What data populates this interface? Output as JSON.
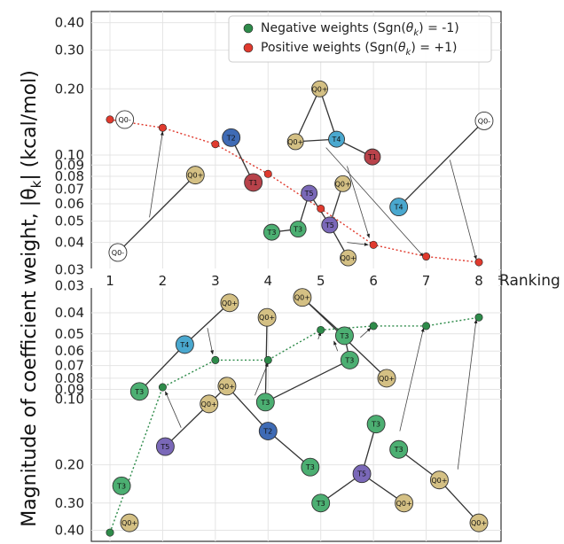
{
  "chart_data": {
    "type": "scatter",
    "ylabel": "Magnitude of coefficient weight, |θ_k| (kcal/mol)",
    "ylabel_main": "Magnitude of coefficient weight, |θ",
    "ylabel_sub": "k",
    "ylabel_end": "| (kcal/mol)",
    "xlabel": "Ranking",
    "x_ticks": [
      1,
      2,
      3,
      4,
      5,
      6,
      7,
      8
    ],
    "y_scale": "log",
    "top_panel": {
      "ylim": [
        0.028,
        0.45
      ],
      "y_ticks": [
        0.03,
        0.04,
        0.05,
        0.06,
        0.07,
        0.08,
        0.09,
        0.1,
        0.2,
        0.3,
        0.4
      ],
      "y_tick_labels": [
        "0.03",
        "0.04",
        "0.05",
        "0.06",
        "0.07",
        "0.08",
        "0.09",
        "0.10",
        "0.20",
        "0.30",
        "0.40"
      ]
    },
    "bottom_panel": {
      "ylim": [
        0.028,
        0.45
      ],
      "inverted": true,
      "y_ticks": [
        0.03,
        0.04,
        0.05,
        0.06,
        0.07,
        0.08,
        0.09,
        0.1,
        0.2,
        0.3,
        0.4
      ],
      "y_tick_labels": [
        "0.03",
        "0.04",
        "0.05",
        "0.06",
        "0.07",
        "0.08",
        "0.09",
        "0.10",
        "0.20",
        "0.30",
        "0.40"
      ]
    },
    "legend": {
      "placement": "top-right",
      "entries": [
        {
          "prefix": "Negative weights (Sgn(",
          "theta": "θ",
          "sub": "k",
          "suffix": ") = -1)",
          "color": "#2e8b4a"
        },
        {
          "prefix": "Positive weights (Sgn(",
          "theta": "θ",
          "sub": "k",
          "suffix": ") = +1)",
          "color": "#e03a2e"
        }
      ]
    },
    "series": [
      {
        "name": "Positive weights",
        "color": "#e03a2e",
        "panel": "top",
        "x": [
          1,
          2,
          3,
          4,
          5,
          6,
          7,
          8
        ],
        "y": [
          0.145,
          0.133,
          0.112,
          0.082,
          0.057,
          0.039,
          0.0345,
          0.0325
        ]
      },
      {
        "name": "Negative weights",
        "color": "#2e8b4a",
        "panel": "bottom",
        "x": [
          1,
          2,
          3,
          4,
          5,
          6,
          7,
          8
        ],
        "y": [
          0.41,
          0.088,
          0.066,
          0.066,
          0.048,
          0.046,
          0.046,
          0.042
        ]
      }
    ],
    "node_colors": {
      "Q0": "#d4c084",
      "Q0e": "#ffffff",
      "T1": "#b8424a",
      "T2": "#3f6bb5",
      "T3": "#4caf72",
      "T4": "#4aa8cf",
      "T5": "#7a68b8"
    },
    "top_nodes": [
      {
        "label": "Q0-",
        "x": 1.28,
        "y": 0.145,
        "kind": "Q0e",
        "r": 10
      },
      {
        "label": "Q0-",
        "x": 1.15,
        "y": 0.036,
        "kind": "Q0e",
        "r": 10
      },
      {
        "label": "Q0+",
        "x": 2.62,
        "y": 0.081,
        "kind": "Q0",
        "r": 10
      },
      {
        "label": "T2",
        "x": 3.3,
        "y": 0.12,
        "kind": "T2",
        "r": 10
      },
      {
        "label": "T1",
        "x": 3.72,
        "y": 0.075,
        "kind": "T1",
        "r": 10
      },
      {
        "label": "T3",
        "x": 4.07,
        "y": 0.0445,
        "kind": "T3",
        "r": 9
      },
      {
        "label": "T3",
        "x": 4.57,
        "y": 0.046,
        "kind": "T3",
        "r": 9
      },
      {
        "label": "T5",
        "x": 4.78,
        "y": 0.067,
        "kind": "T5",
        "r": 9
      },
      {
        "label": "Q0+",
        "x": 4.98,
        "y": 0.2,
        "kind": "Q0",
        "r": 9
      },
      {
        "label": "Q0+",
        "x": 4.52,
        "y": 0.115,
        "kind": "Q0",
        "r": 9
      },
      {
        "label": "T4",
        "x": 5.3,
        "y": 0.118,
        "kind": "T4",
        "r": 9
      },
      {
        "label": "T1",
        "x": 5.98,
        "y": 0.098,
        "kind": "T1",
        "r": 9
      },
      {
        "label": "Q0+",
        "x": 5.42,
        "y": 0.074,
        "kind": "Q0",
        "r": 9
      },
      {
        "label": "T5",
        "x": 5.17,
        "y": 0.048,
        "kind": "T5",
        "r": 9
      },
      {
        "label": "Q0+",
        "x": 5.52,
        "y": 0.034,
        "kind": "Q0",
        "r": 9
      },
      {
        "label": "T4",
        "x": 6.48,
        "y": 0.058,
        "kind": "T4",
        "r": 10
      },
      {
        "label": "Q0-",
        "x": 8.1,
        "y": 0.143,
        "kind": "Q0e",
        "r": 10
      }
    ],
    "bottom_nodes": [
      {
        "label": "T4",
        "x": 2.42,
        "y": 0.056,
        "kind": "T4",
        "r": 10
      },
      {
        "label": "Q0+",
        "x": 3.27,
        "y": 0.036,
        "kind": "Q0",
        "r": 10
      },
      {
        "label": "T3",
        "x": 1.56,
        "y": 0.092,
        "kind": "T3",
        "r": 10
      },
      {
        "label": "T5",
        "x": 2.05,
        "y": 0.165,
        "kind": "T5",
        "r": 10
      },
      {
        "label": "Q0+",
        "x": 2.88,
        "y": 0.105,
        "kind": "Q0",
        "r": 10
      },
      {
        "label": "Q0+",
        "x": 3.22,
        "y": 0.087,
        "kind": "Q0",
        "r": 10
      },
      {
        "label": "Q0+",
        "x": 3.98,
        "y": 0.042,
        "kind": "Q0",
        "r": 10
      },
      {
        "label": "T3",
        "x": 3.95,
        "y": 0.103,
        "kind": "T3",
        "r": 10
      },
      {
        "label": "T2",
        "x": 4.0,
        "y": 0.14,
        "kind": "T2",
        "r": 10
      },
      {
        "label": "T3",
        "x": 4.8,
        "y": 0.205,
        "kind": "T3",
        "r": 10
      },
      {
        "label": "Q0+",
        "x": 4.65,
        "y": 0.034,
        "kind": "Q0",
        "r": 10
      },
      {
        "label": "T3",
        "x": 5.45,
        "y": 0.051,
        "kind": "T3",
        "r": 10
      },
      {
        "label": "T3",
        "x": 5.55,
        "y": 0.066,
        "kind": "T3",
        "r": 10
      },
      {
        "label": "Q0+",
        "x": 6.25,
        "y": 0.08,
        "kind": "Q0",
        "r": 10
      },
      {
        "label": "T3",
        "x": 6.05,
        "y": 0.13,
        "kind": "T3",
        "r": 10
      },
      {
        "label": "T3",
        "x": 5.0,
        "y": 0.3,
        "kind": "T3",
        "r": 10
      },
      {
        "label": "T5",
        "x": 5.78,
        "y": 0.22,
        "kind": "T5",
        "r": 10
      },
      {
        "label": "Q0+",
        "x": 6.58,
        "y": 0.3,
        "kind": "Q0",
        "r": 10
      },
      {
        "label": "T3",
        "x": 6.48,
        "y": 0.17,
        "kind": "T3",
        "r": 10
      },
      {
        "label": "Q0+",
        "x": 7.25,
        "y": 0.235,
        "kind": "Q0",
        "r": 10
      },
      {
        "label": "Q0+",
        "x": 8.0,
        "y": 0.37,
        "kind": "Q0",
        "r": 10
      },
      {
        "label": "T3",
        "x": 1.22,
        "y": 0.25,
        "kind": "T3",
        "r": 10
      },
      {
        "label": "Q0+",
        "x": 1.37,
        "y": 0.37,
        "kind": "Q0",
        "r": 10
      }
    ],
    "top_edges": [
      [
        1,
        2
      ],
      [
        3,
        4
      ],
      [
        5,
        6
      ],
      [
        6,
        7
      ],
      [
        7,
        13
      ],
      [
        13,
        12
      ],
      [
        9,
        8
      ],
      [
        8,
        10
      ],
      [
        9,
        10
      ],
      [
        10,
        11
      ],
      [
        15,
        16
      ],
      [
        13,
        14
      ]
    ],
    "bottom_edges": [
      [
        2,
        0
      ],
      [
        0,
        1
      ],
      [
        3,
        4
      ],
      [
        4,
        5
      ],
      [
        5,
        8
      ],
      [
        8,
        9
      ],
      [
        7,
        6
      ],
      [
        7,
        12
      ],
      [
        12,
        11
      ],
      [
        11,
        10
      ],
      [
        10,
        13
      ],
      [
        14,
        16
      ],
      [
        15,
        16
      ],
      [
        16,
        17
      ],
      [
        18,
        19
      ],
      [
        19,
        20
      ]
    ],
    "top_arrows": [
      {
        "from": [
          1.75,
          0.052
        ],
        "to": [
          2.0,
          0.128
        ]
      },
      {
        "from": [
          5.1,
          0.108
        ],
        "to": [
          6.95,
          0.0345
        ]
      },
      {
        "from": [
          5.5,
          0.089
        ],
        "to": [
          5.92,
          0.042
        ]
      },
      {
        "from": [
          7.45,
          0.095
        ],
        "to": [
          7.95,
          0.0335
        ]
      },
      {
        "from": [
          5.5,
          0.04
        ],
        "to": [
          5.9,
          0.039
        ]
      }
    ],
    "bottom_arrows": [
      {
        "from": [
          2.35,
          0.135
        ],
        "to": [
          2.05,
          0.092
        ]
      },
      {
        "from": [
          2.85,
          0.047
        ],
        "to": [
          2.95,
          0.062
        ]
      },
      {
        "from": [
          3.75,
          0.096
        ],
        "to": [
          4.0,
          0.068
        ]
      },
      {
        "from": [
          4.95,
          0.053
        ],
        "to": [
          5.0,
          0.049
        ]
      },
      {
        "from": [
          5.32,
          0.06
        ],
        "to": [
          5.25,
          0.054
        ]
      },
      {
        "from": [
          5.75,
          0.052
        ],
        "to": [
          5.95,
          0.047
        ]
      },
      {
        "from": [
          6.5,
          0.14
        ],
        "to": [
          6.95,
          0.047
        ]
      },
      {
        "from": [
          7.6,
          0.21
        ],
        "to": [
          7.95,
          0.043
        ]
      }
    ]
  }
}
